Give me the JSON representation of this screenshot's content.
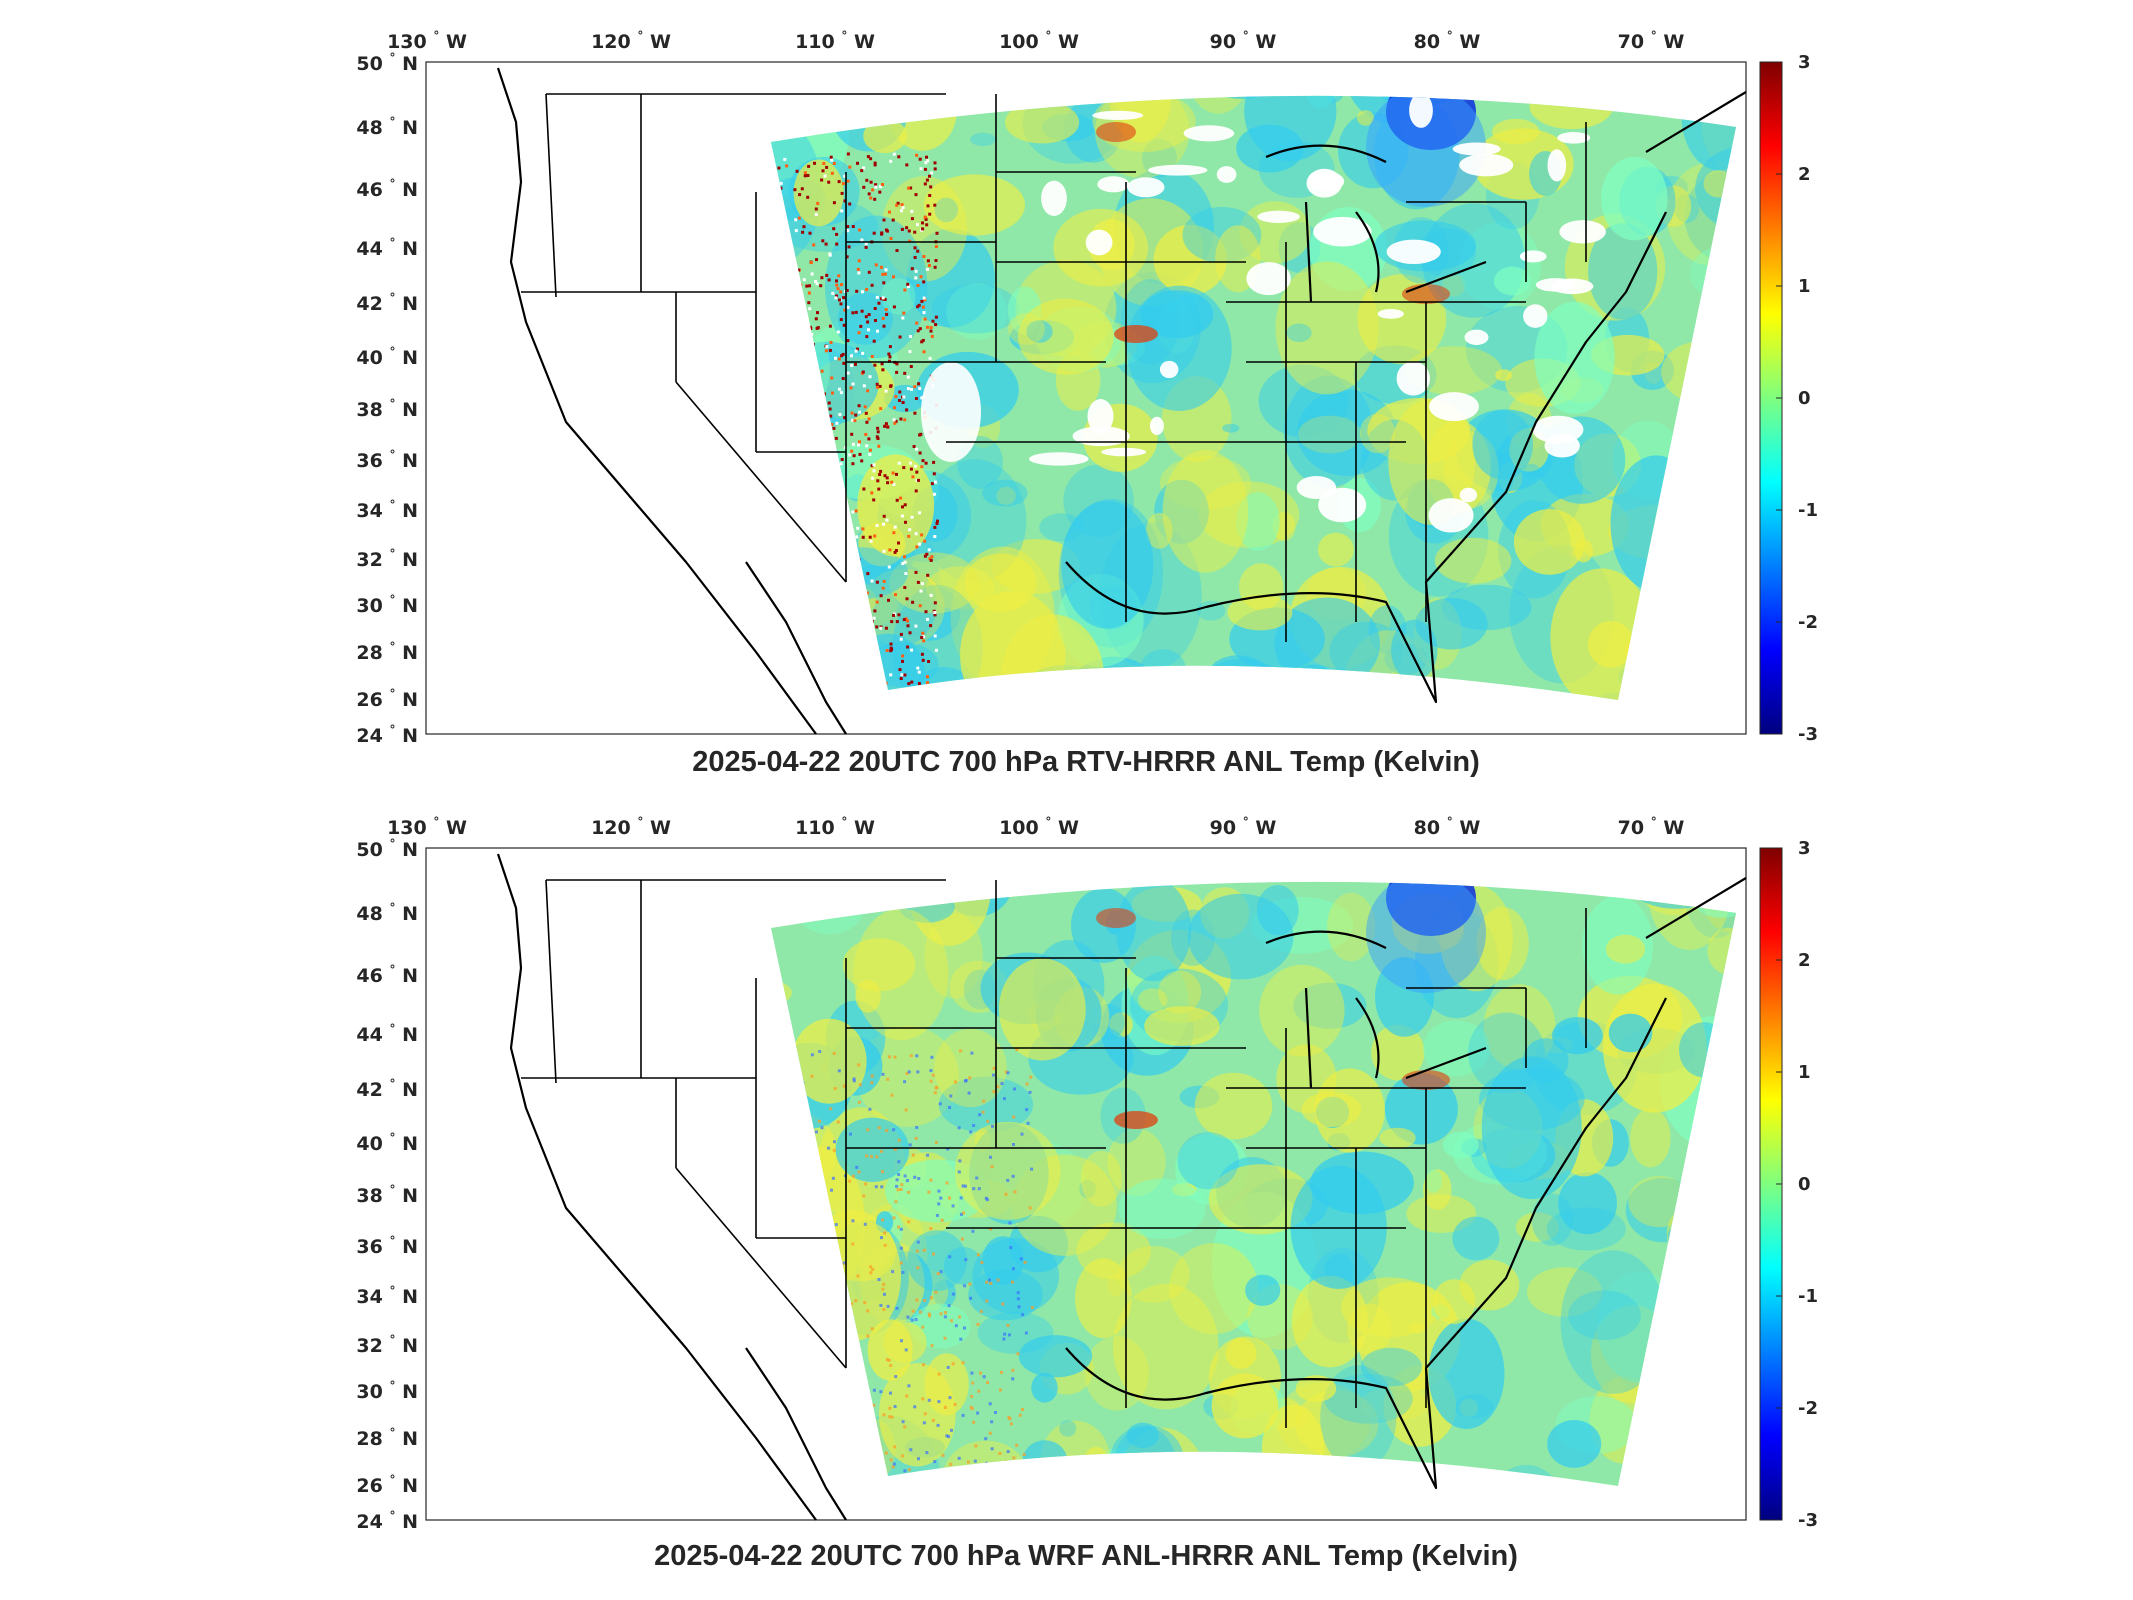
{
  "panels": [
    {
      "title": "2025-04-22 20UTC 700 hPa RTV-HRRR ANL Temp (Kelvin)",
      "id": "rtv"
    },
    {
      "title": "2025-04-22 20UTC 700 hPa WRF ANL-HRRR ANL Temp (Kelvin)",
      "id": "wrf"
    }
  ],
  "axes": {
    "lon_ticks": [
      "130",
      "120",
      "110",
      "100",
      "90",
      "80",
      "70"
    ],
    "lon_hemisphere": "W",
    "lat_ticks": [
      "50",
      "48",
      "46",
      "44",
      "42",
      "40",
      "38",
      "36",
      "34",
      "32",
      "30",
      "28",
      "26",
      "24"
    ],
    "lat_hemisphere": "N",
    "degree_symbol": "°"
  },
  "colorbar": {
    "ticks": [
      "3",
      "2",
      "1",
      "0",
      "-1",
      "-2",
      "-3"
    ],
    "min": -3,
    "max": 3,
    "colormap": "jet",
    "colors": [
      "#00007f",
      "#0000ff",
      "#007fff",
      "#00ffff",
      "#7fff7f",
      "#ffff00",
      "#ff7f00",
      "#ff0000",
      "#7f0000"
    ]
  },
  "map": {
    "projection": "Lambert conformal (HRRR CONUS domain)",
    "field_colors": {
      "background_field": "#8fe8a8",
      "cool_anomaly": "#33ccee",
      "warm_anomaly": "#eeee44",
      "strong_cold": "#0a2ee0",
      "strong_warm": "#e04010",
      "missing": "#ffffff"
    },
    "boundary_color": "#000000"
  }
}
